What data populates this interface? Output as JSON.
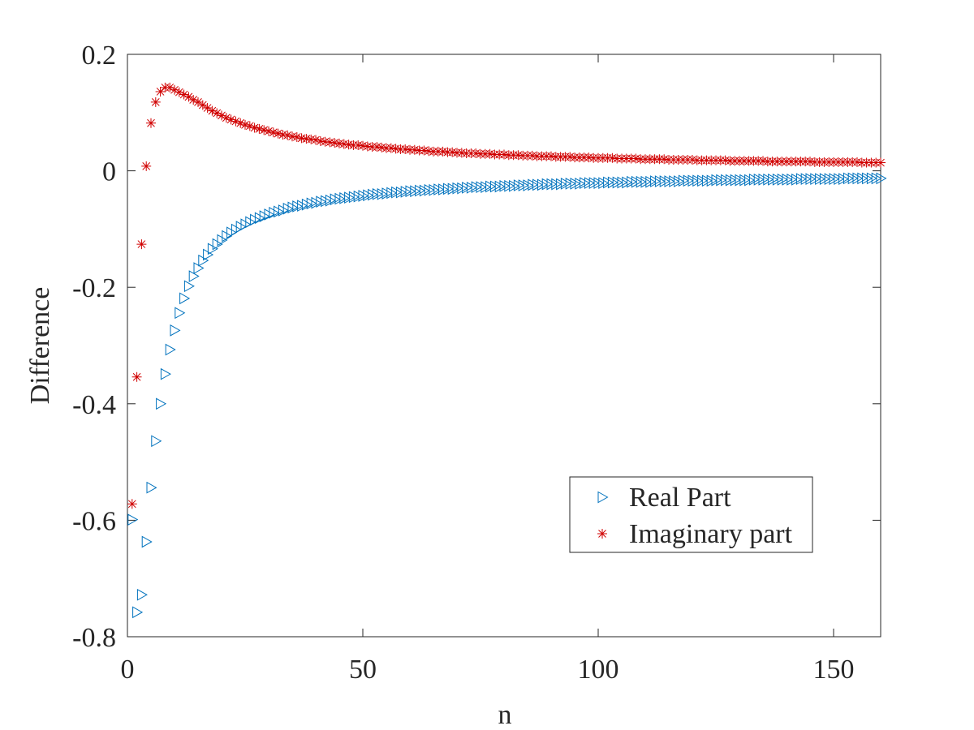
{
  "chart_data": {
    "type": "scatter",
    "xlabel": "n",
    "ylabel": "Difference",
    "xlim": [
      0,
      160
    ],
    "xticks": [
      0,
      50,
      100,
      150
    ],
    "ylim": [
      -0.8,
      0.2
    ],
    "yticks": [
      0.2,
      0,
      -0.2,
      -0.4,
      -0.6,
      -0.8
    ],
    "grid": false,
    "legend": "lower-right",
    "x": [
      1,
      2,
      3,
      4,
      5,
      6,
      7,
      8,
      9,
      10,
      11,
      12,
      13,
      14,
      15,
      16,
      17,
      18,
      19,
      20,
      21,
      22,
      23,
      24,
      25,
      26,
      27,
      28,
      29,
      30,
      31,
      32,
      33,
      34,
      35,
      36,
      37,
      38,
      39,
      40,
      41,
      42,
      43,
      44,
      45,
      46,
      47,
      48,
      49,
      50,
      51,
      52,
      53,
      54,
      55,
      56,
      57,
      58,
      59,
      60,
      61,
      62,
      63,
      64,
      65,
      66,
      67,
      68,
      69,
      70,
      71,
      72,
      73,
      74,
      75,
      76,
      77,
      78,
      79,
      80,
      81,
      82,
      83,
      84,
      85,
      86,
      87,
      88,
      89,
      90,
      91,
      92,
      93,
      94,
      95,
      96,
      97,
      98,
      99,
      100,
      101,
      102,
      103,
      104,
      105,
      106,
      107,
      108,
      109,
      110,
      111,
      112,
      113,
      114,
      115,
      116,
      117,
      118,
      119,
      120,
      121,
      122,
      123,
      124,
      125,
      126,
      127,
      128,
      129,
      130,
      131,
      132,
      133,
      134,
      135,
      136,
      137,
      138,
      139,
      140,
      141,
      142,
      143,
      144,
      145,
      146,
      147,
      148,
      149,
      150,
      151,
      152,
      153,
      154,
      155,
      156,
      157,
      158,
      159,
      160
    ],
    "series": [
      {
        "name": "Real Part",
        "color": "#0072bd",
        "marker": "triangle-right",
        "values": [
          -0.599,
          -0.758,
          -0.728,
          -0.637,
          -0.544,
          -0.464,
          -0.4,
          -0.349,
          -0.307,
          -0.274,
          -0.244,
          -0.219,
          -0.198,
          -0.181,
          -0.167,
          -0.154,
          -0.144,
          -0.134,
          -0.126,
          -0.119,
          -0.112,
          -0.106,
          -0.101,
          -0.096,
          -0.092,
          -0.088,
          -0.084,
          -0.081,
          -0.078,
          -0.075,
          -0.072,
          -0.07,
          -0.068,
          -0.065,
          -0.063,
          -0.061,
          -0.06,
          -0.058,
          -0.056,
          -0.055,
          -0.053,
          -0.052,
          -0.051,
          -0.049,
          -0.048,
          -0.047,
          -0.046,
          -0.045,
          -0.044,
          -0.043,
          -0.042,
          -0.041,
          -0.04,
          -0.04,
          -0.039,
          -0.038,
          -0.037,
          -0.037,
          -0.036,
          -0.035,
          -0.035,
          -0.034,
          -0.034,
          -0.033,
          -0.033,
          -0.032,
          -0.032,
          -0.031,
          -0.031,
          -0.03,
          -0.03,
          -0.029,
          -0.029,
          -0.028,
          -0.028,
          -0.028,
          -0.027,
          -0.027,
          -0.027,
          -0.026,
          -0.026,
          -0.026,
          -0.025,
          -0.025,
          -0.025,
          -0.024,
          -0.024,
          -0.024,
          -0.023,
          -0.023,
          -0.023,
          -0.023,
          -0.022,
          -0.022,
          -0.022,
          -0.022,
          -0.021,
          -0.021,
          -0.021,
          -0.021,
          -0.021,
          -0.02,
          -0.02,
          -0.02,
          -0.02,
          -0.02,
          -0.019,
          -0.019,
          -0.019,
          -0.019,
          -0.019,
          -0.018,
          -0.018,
          -0.018,
          -0.018,
          -0.018,
          -0.018,
          -0.017,
          -0.017,
          -0.017,
          -0.017,
          -0.017,
          -0.017,
          -0.017,
          -0.016,
          -0.016,
          -0.016,
          -0.016,
          -0.016,
          -0.016,
          -0.016,
          -0.016,
          -0.015,
          -0.015,
          -0.015,
          -0.015,
          -0.015,
          -0.015,
          -0.015,
          -0.015,
          -0.015,
          -0.015,
          -0.014,
          -0.014,
          -0.014,
          -0.014,
          -0.014,
          -0.014,
          -0.014,
          -0.014,
          -0.014,
          -0.014,
          -0.013,
          -0.013,
          -0.013,
          -0.013,
          -0.013,
          -0.013,
          -0.013,
          -0.013
        ]
      },
      {
        "name": "Imaginary part",
        "color": "#d00000",
        "marker": "asterisk",
        "values": [
          -0.572,
          -0.354,
          -0.126,
          0.008,
          0.082,
          0.118,
          0.136,
          0.143,
          0.143,
          0.139,
          0.135,
          0.131,
          0.127,
          0.122,
          0.118,
          0.113,
          0.108,
          0.103,
          0.099,
          0.095,
          0.091,
          0.088,
          0.085,
          0.082,
          0.079,
          0.077,
          0.074,
          0.072,
          0.07,
          0.068,
          0.066,
          0.064,
          0.062,
          0.061,
          0.059,
          0.058,
          0.056,
          0.055,
          0.054,
          0.053,
          0.051,
          0.05,
          0.049,
          0.048,
          0.047,
          0.046,
          0.045,
          0.044,
          0.044,
          0.043,
          0.042,
          0.041,
          0.041,
          0.04,
          0.039,
          0.039,
          0.038,
          0.037,
          0.037,
          0.036,
          0.036,
          0.035,
          0.035,
          0.034,
          0.033,
          0.033,
          0.033,
          0.032,
          0.032,
          0.031,
          0.031,
          0.03,
          0.03,
          0.03,
          0.029,
          0.029,
          0.029,
          0.028,
          0.028,
          0.028,
          0.027,
          0.027,
          0.027,
          0.026,
          0.026,
          0.026,
          0.025,
          0.025,
          0.025,
          0.025,
          0.024,
          0.024,
          0.024,
          0.024,
          0.023,
          0.023,
          0.023,
          0.023,
          0.022,
          0.022,
          0.022,
          0.022,
          0.022,
          0.021,
          0.021,
          0.021,
          0.021,
          0.021,
          0.02,
          0.02,
          0.02,
          0.02,
          0.02,
          0.02,
          0.019,
          0.019,
          0.019,
          0.019,
          0.019,
          0.019,
          0.018,
          0.018,
          0.018,
          0.018,
          0.018,
          0.018,
          0.018,
          0.017,
          0.017,
          0.017,
          0.017,
          0.017,
          0.017,
          0.017,
          0.017,
          0.016,
          0.016,
          0.016,
          0.016,
          0.016,
          0.016,
          0.016,
          0.016,
          0.016,
          0.016,
          0.015,
          0.015,
          0.015,
          0.015,
          0.015,
          0.015,
          0.015,
          0.015,
          0.015,
          0.015,
          0.014,
          0.014,
          0.014,
          0.014,
          0.014
        ]
      }
    ]
  }
}
